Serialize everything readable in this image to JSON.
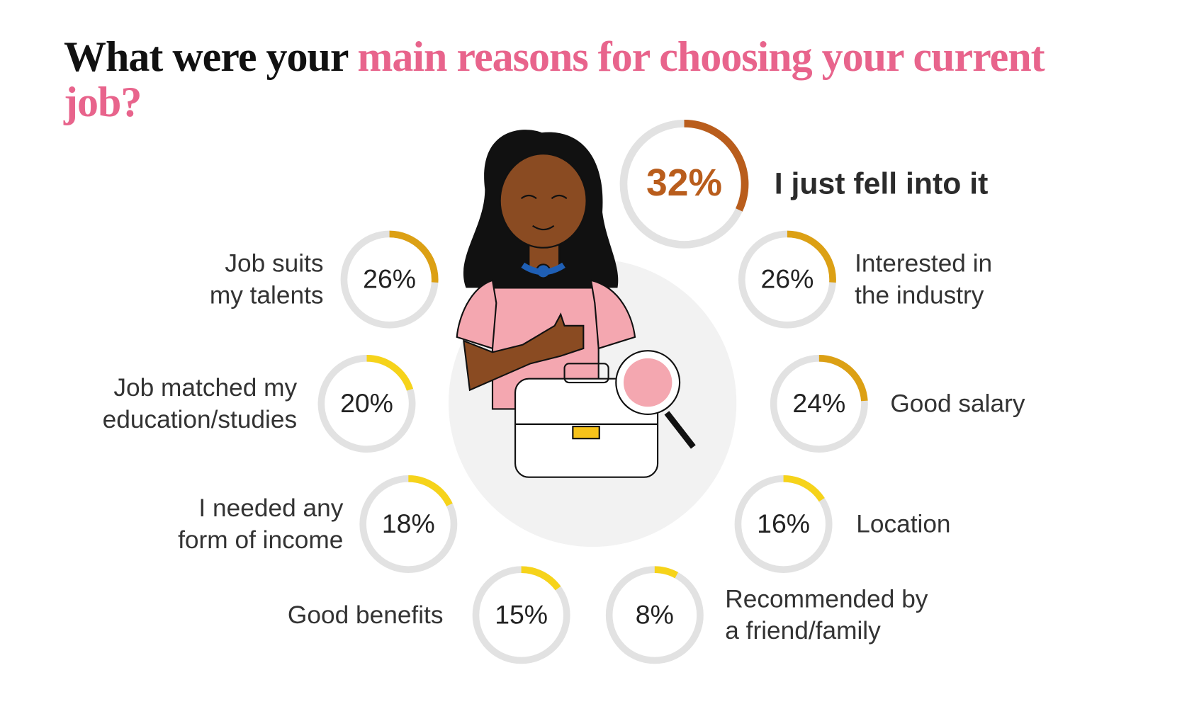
{
  "chart_data": {
    "type": "donut",
    "title": {
      "plain": "What were your",
      "highlight": "main reasons for choosing your current job?"
    },
    "categories": [
      [
        "I just fell into it"
      ],
      [
        "Job suits",
        "my talents"
      ],
      [
        "Interested in",
        "the industry"
      ],
      [
        "Job matched my",
        "education/studies"
      ],
      [
        "Good salary"
      ],
      [
        "I needed any",
        "form of income"
      ],
      [
        "Location"
      ],
      [
        "Good benefits"
      ],
      [
        "Recommended by",
        "a friend/family"
      ]
    ],
    "values": [
      32,
      26,
      26,
      20,
      24,
      18,
      16,
      15,
      8
    ],
    "value_labels": [
      "32%",
      "26%",
      "26%",
      "20%",
      "24%",
      "18%",
      "16%",
      "15%",
      "8%"
    ],
    "colors": [
      "#b95d1c",
      "#dca014",
      "#dca014",
      "#f6d31a",
      "#dca014",
      "#f6d31a",
      "#f6d31a",
      "#f6d31a",
      "#f6d31a"
    ],
    "track_color": "#e2e2e2",
    "highlight_color": "#e8648c"
  }
}
